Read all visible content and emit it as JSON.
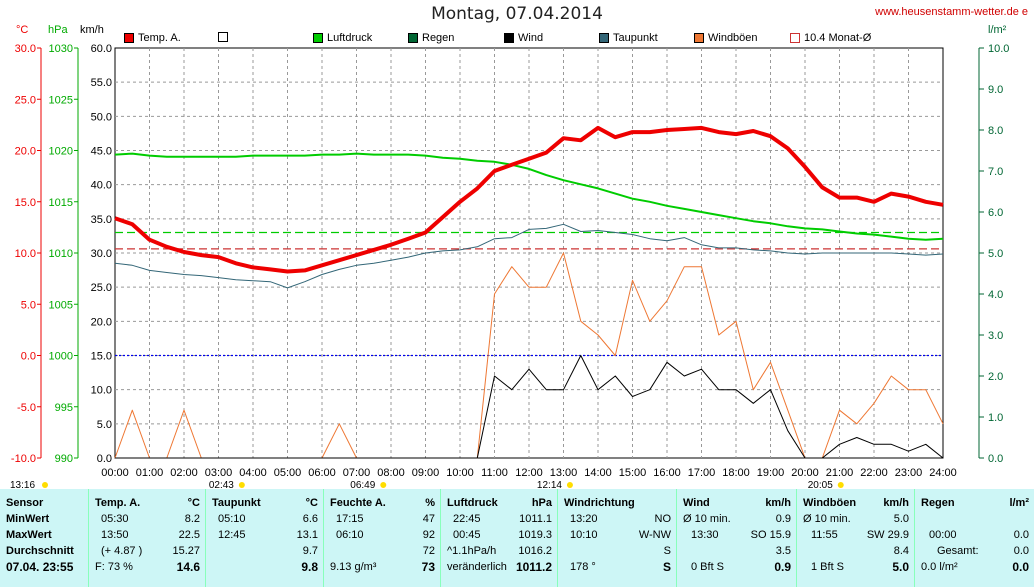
{
  "header": {
    "title": "Montag, 07.04.2014",
    "site": "www.heusenstamm-wetter.de e",
    "unit_celsius": "°C",
    "unit_hpa": "hPa",
    "unit_kmh": "km/h",
    "unit_lm2": "l/m²"
  },
  "legend": [
    {
      "label": "Temp. A.",
      "color": "#ee0000",
      "filled": true
    },
    {
      "label": "",
      "color": "#ffffff",
      "filled": false
    },
    {
      "label": "Luftdruck",
      "color": "#00cc00",
      "filled": true
    },
    {
      "label": "Regen",
      "color": "#006633",
      "filled": true
    },
    {
      "label": "Wind",
      "color": "#000000",
      "filled": true
    },
    {
      "label": "Taupunkt",
      "color": "#336677",
      "filled": true
    },
    {
      "label": "Windböen",
      "color": "#ee7733",
      "filled": true
    },
    {
      "label": "10.4 Monat-Ø",
      "color": "#ffffff",
      "filled": false
    }
  ],
  "chart_data": {
    "type": "line",
    "x_hours": [
      0,
      0.5,
      1,
      1.5,
      2,
      2.5,
      3,
      3.5,
      4,
      4.5,
      5,
      5.5,
      6,
      6.5,
      7,
      7.5,
      8,
      8.5,
      9,
      9.5,
      10,
      10.5,
      11,
      11.5,
      12,
      12.5,
      13,
      13.5,
      14,
      14.5,
      15,
      15.5,
      16,
      16.5,
      17,
      17.5,
      18,
      18.5,
      19,
      19.5,
      20,
      20.5,
      21,
      21.5,
      22,
      22.5,
      23,
      23.5,
      24
    ],
    "x_ticks": [
      "00:00",
      "01:00",
      "02:00",
      "03:00",
      "04:00",
      "05:00",
      "06:00",
      "07:00",
      "08:00",
      "09:00",
      "10:00",
      "11:00",
      "12:00",
      "13:00",
      "14:00",
      "15:00",
      "16:00",
      "17:00",
      "18:00",
      "19:00",
      "20:00",
      "21:00",
      "22:00",
      "23:00",
      "24:00"
    ],
    "axes": {
      "celsius": {
        "ticks": [
          "30.0",
          "25.0",
          "20.0",
          "15.0",
          "10.0",
          "5.0",
          "0.0",
          "-5.0",
          "-10.0"
        ],
        "min": -10,
        "max": 30,
        "color": "#ee0000"
      },
      "hpa": {
        "ticks": [
          "1030",
          "1025",
          "1020",
          "1015",
          "1010",
          "1005",
          "1000",
          "995",
          "990"
        ],
        "min": 990,
        "max": 1030,
        "color": "#00aa00"
      },
      "kmh": {
        "ticks": [
          "60.0",
          "55.0",
          "50.0",
          "45.0",
          "40.0",
          "35.0",
          "30.0",
          "25.0",
          "20.0",
          "15.0",
          "10.0",
          "5.0",
          "0.0"
        ],
        "min": 0,
        "max": 60,
        "color": "#000000"
      },
      "lm2": {
        "ticks": [
          "10.0",
          "9.0",
          "8.0",
          "7.0",
          "6.0",
          "5.0",
          "4.0",
          "3.0",
          "2.0",
          "1.0",
          "0.0"
        ],
        "min": 0,
        "max": 10,
        "color": "#006633"
      }
    },
    "series": [
      {
        "name": "Temp. A.",
        "axis": "celsius",
        "color": "#ee0000",
        "width": 4,
        "values": [
          13.4,
          12.8,
          11.3,
          10.6,
          10.1,
          9.8,
          9.6,
          9.0,
          8.6,
          8.4,
          8.2,
          8.3,
          8.8,
          9.3,
          9.8,
          10.3,
          10.8,
          11.4,
          12.0,
          13.5,
          15.0,
          16.3,
          18.0,
          18.6,
          19.2,
          19.8,
          21.2,
          21.0,
          22.2,
          21.3,
          21.8,
          21.8,
          22.0,
          22.1,
          22.2,
          21.8,
          21.6,
          21.9,
          21.4,
          20.2,
          18.4,
          16.4,
          15.4,
          15.4,
          15.0,
          15.8,
          15.5,
          15.0,
          14.7
        ]
      },
      {
        "name": "Luftdruck",
        "axis": "hpa",
        "color": "#00cc00",
        "width": 2,
        "values": [
          1019.6,
          1019.7,
          1019.5,
          1019.4,
          1019.4,
          1019.4,
          1019.4,
          1019.4,
          1019.5,
          1019.5,
          1019.5,
          1019.5,
          1019.6,
          1019.6,
          1019.7,
          1019.6,
          1019.6,
          1019.6,
          1019.5,
          1019.3,
          1019.2,
          1019.0,
          1018.9,
          1018.6,
          1018.2,
          1017.6,
          1017.1,
          1016.7,
          1016.3,
          1015.8,
          1015.3,
          1015.0,
          1014.6,
          1014.3,
          1014.0,
          1013.7,
          1013.4,
          1013.1,
          1012.9,
          1012.6,
          1012.4,
          1012.3,
          1012.1,
          1011.9,
          1011.8,
          1011.6,
          1011.4,
          1011.3,
          1011.4
        ]
      },
      {
        "name": "Taupunkt",
        "axis": "celsius",
        "color": "#336677",
        "width": 1,
        "values": [
          9.0,
          8.8,
          8.3,
          8.1,
          7.9,
          7.8,
          7.6,
          7.4,
          7.3,
          7.2,
          6.6,
          7.2,
          7.9,
          8.4,
          8.8,
          9.0,
          9.3,
          9.6,
          10.0,
          10.2,
          10.3,
          10.6,
          11.4,
          11.5,
          12.3,
          12.4,
          12.8,
          12.1,
          12.2,
          12.0,
          11.8,
          11.4,
          11.2,
          11.5,
          10.8,
          10.5,
          10.5,
          10.3,
          10.2,
          10.0,
          9.9,
          10.0,
          10.0,
          10.0,
          10.0,
          10.0,
          9.9,
          9.8,
          9.9
        ]
      },
      {
        "name": "Windböen",
        "axis": "kmh",
        "color": "#ee7733",
        "width": 1,
        "values": [
          0,
          7,
          0,
          0,
          7,
          0,
          0,
          0,
          0,
          0,
          0,
          0,
          0,
          5,
          0,
          0,
          0,
          0,
          0,
          0,
          0,
          0,
          24,
          28,
          25,
          25,
          30,
          20,
          18,
          15,
          26,
          20,
          23,
          28,
          28,
          18,
          20,
          10,
          14,
          7,
          0,
          0,
          7,
          5,
          8,
          12,
          10,
          10,
          5
        ]
      },
      {
        "name": "Wind",
        "axis": "kmh",
        "color": "#000000",
        "width": 1,
        "values": [
          0,
          0,
          0,
          0,
          0,
          0,
          0,
          0,
          0,
          0,
          0,
          0,
          0,
          0,
          0,
          0,
          0,
          0,
          0,
          0,
          0,
          0,
          12,
          10,
          13,
          10,
          10,
          15,
          10,
          12,
          9,
          10,
          14,
          12,
          13,
          10,
          10,
          8,
          10,
          4,
          0,
          0,
          2,
          3,
          2,
          2,
          1,
          2,
          0
        ]
      }
    ],
    "reference_lines": [
      {
        "name": "10.4 Monat-Ø temp",
        "axis": "celsius",
        "value": 10.4,
        "color": "#cc3333",
        "dash": "8,4"
      },
      {
        "name": "pressure ref",
        "axis": "hpa",
        "value": 1012.0,
        "color": "#00cc00",
        "dash": "8,4"
      },
      {
        "name": "zero",
        "axis": "celsius",
        "value": 0.0,
        "color": "#0000ee",
        "dash": "2,2"
      }
    ]
  },
  "sun_marks": [
    {
      "label": "13:16",
      "hour": -0.6
    },
    {
      "label": "02:43",
      "hour": 2.72
    },
    {
      "label": "06:49",
      "hour": 6.82
    },
    {
      "label": "12:14",
      "hour": 12.23
    },
    {
      "label": "20:05",
      "hour": 20.08
    }
  ],
  "table": {
    "sensor": {
      "h": "Sensor",
      "r1": "MinWert",
      "r2": "MaxWert",
      "r3": "Durchschnitt",
      "r4": "07.04. 23:55"
    },
    "temp": {
      "h": "Temp. A.",
      "u": "°C",
      "r1a": "05:30",
      "r1b": "8.2",
      "r2a": "13:50",
      "r2b": "22.5",
      "r3a": "(+ 4.87 )",
      "r3b": "15.27",
      "r4a": "F: 73 %",
      "r4b": "14.6"
    },
    "taup": {
      "h": "Taupunkt",
      "u": "°C",
      "r1a": "05:10",
      "r1b": "6.6",
      "r2a": "12:45",
      "r2b": "13.1",
      "r3b": "9.7",
      "r4b": "9.8"
    },
    "feuchte": {
      "h": "Feuchte A.",
      "u": "%",
      "r1a": "17:15",
      "r1b": "47",
      "r2a": "06:10",
      "r2b": "92",
      "r3b": "72",
      "r4a": "9.13 g/m³",
      "r4b": "73"
    },
    "luft": {
      "h": "Luftdruck",
      "u": "hPa",
      "r1a": "22:45",
      "r1b": "1011.1",
      "r2a": "00:45",
      "r2b": "1019.3",
      "r3a": "^1.1hPa/h",
      "r3b": "1016.2",
      "r4a": "veränderlich",
      "r4b": "1011.2"
    },
    "richt": {
      "h": "Windrichtung",
      "r1a": "13:20",
      "r1b": "NO",
      "r2a": "10:10",
      "r2b": "W-NW",
      "r3b": "S",
      "r4a": "178 °",
      "r4b": "S"
    },
    "wind": {
      "h": "Wind",
      "u": "km/h",
      "r1a": "Ø 10 min.",
      "r1b": "0.9",
      "r2a": "13:30",
      "r2m": "SO 15.9",
      "r3b": "3.5",
      "r4a": "0 Bft S",
      "r4b": "0.9"
    },
    "boen": {
      "h": "Windböen",
      "u": "km/h",
      "r1a": "Ø 10 min.",
      "r1b": "5.0",
      "r2a": "11:55",
      "r2m": "SW 29.9",
      "r3b": "8.4",
      "r4a": "1 Bft S",
      "r4b": "5.0"
    },
    "regen": {
      "h": "Regen",
      "u": "l/m²",
      "r2a": "00:00",
      "r2b": "0.0",
      "r3a": "Gesamt:",
      "r3b": "0.0",
      "r4a": "0.0 l/m²",
      "r4b": "0.0",
      "r1b": ""
    }
  }
}
